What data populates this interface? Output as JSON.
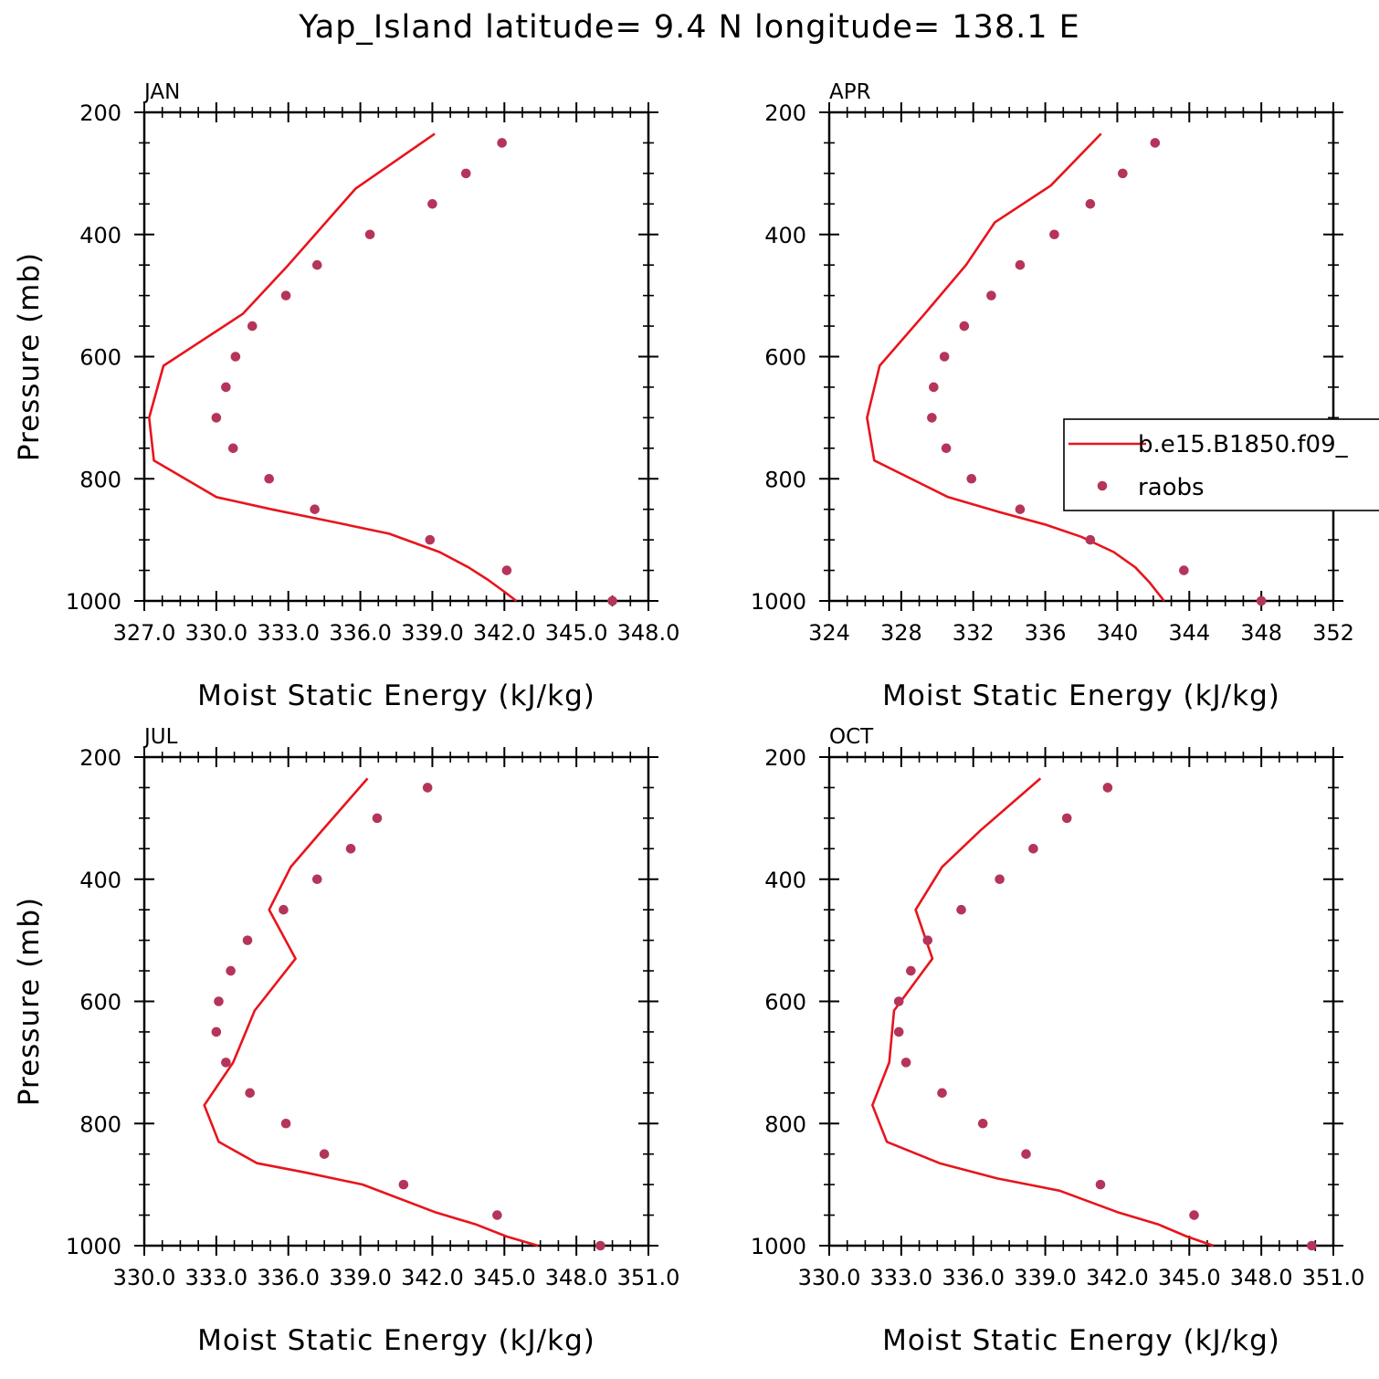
{
  "page": {
    "title": "Yap_Island  latitude= 9.4 N longitude= 138.1 E"
  },
  "legend": {
    "entries": [
      {
        "label": "b.e15.B1850.f09_",
        "type": "line",
        "color": "#e8141c"
      },
      {
        "label": "raobs",
        "type": "marker",
        "color": "#b5345a"
      }
    ]
  },
  "chart_data": [
    {
      "type": "line",
      "panel_label": "JAN",
      "xlabel": "Moist Static Energy (kJ/kg)",
      "ylabel": "Pressure (mb)",
      "xlim": [
        327.0,
        348.0
      ],
      "x_tick_values": [
        327,
        330,
        333,
        336,
        339,
        342,
        345,
        348
      ],
      "x_tick_labels": [
        "327.0",
        "330.0",
        "333.0",
        "336.0",
        "339.0",
        "342.0",
        "345.0",
        "348.0"
      ],
      "ylim": [
        1000,
        200
      ],
      "y_ticks": [
        200,
        400,
        600,
        800,
        1000
      ],
      "series": [
        {
          "name": "b.e15.B1850.f09_",
          "style": "line",
          "color": "#e8141c",
          "x": [
            339.1,
            335.8,
            333.0,
            331.1,
            327.8,
            327.2,
            327.4,
            330.0,
            332.3,
            334.8,
            337.2,
            339.3,
            340.5,
            341.3,
            342.0,
            342.5
          ],
          "y": [
            235,
            325,
            450,
            530,
            615,
            700,
            770,
            830,
            850,
            870,
            890,
            920,
            945,
            965,
            985,
            1000
          ]
        },
        {
          "name": "raobs",
          "style": "marker",
          "color": "#b5345a",
          "x": [
            341.9,
            340.4,
            339.0,
            336.4,
            334.2,
            332.9,
            331.5,
            330.8,
            330.4,
            330.0,
            330.7,
            332.2,
            334.1,
            338.9,
            342.1,
            346.5
          ],
          "y": [
            250,
            300,
            350,
            400,
            450,
            500,
            550,
            600,
            650,
            700,
            750,
            800,
            850,
            900,
            950,
            1000
          ]
        }
      ]
    },
    {
      "type": "line",
      "panel_label": "APR",
      "xlabel": "Moist Static Energy (kJ/kg)",
      "ylabel": "",
      "xlim": [
        324,
        352
      ],
      "x_tick_values": [
        324,
        328,
        332,
        336,
        340,
        344,
        348,
        352
      ],
      "x_tick_labels": [
        "324",
        "328",
        "332",
        "336",
        "340",
        "344",
        "348",
        "352"
      ],
      "ylim": [
        1000,
        200
      ],
      "y_ticks": [
        200,
        400,
        600,
        800,
        1000
      ],
      "series": [
        {
          "name": "b.e15.B1850.f09_",
          "style": "line",
          "color": "#e8141c",
          "x": [
            339.1,
            336.3,
            333.2,
            331.6,
            329.3,
            326.8,
            326.1,
            326.5,
            330.6,
            333.5,
            336.0,
            338.0,
            339.8,
            341.0,
            341.8,
            342.6
          ],
          "y": [
            235,
            320,
            380,
            450,
            530,
            615,
            700,
            770,
            830,
            855,
            875,
            895,
            920,
            945,
            970,
            1000
          ]
        },
        {
          "name": "raobs",
          "style": "marker",
          "color": "#b5345a",
          "x": [
            342.1,
            340.3,
            338.5,
            336.5,
            334.6,
            333.0,
            331.5,
            330.4,
            329.8,
            329.7,
            330.5,
            331.9,
            334.6,
            338.5,
            343.7,
            348.0
          ],
          "y": [
            250,
            300,
            350,
            400,
            450,
            500,
            550,
            600,
            650,
            700,
            750,
            800,
            850,
            900,
            950,
            1000
          ]
        }
      ]
    },
    {
      "type": "line",
      "panel_label": "JUL",
      "xlabel": "Moist Static Energy (kJ/kg)",
      "ylabel": "Pressure (mb)",
      "xlim": [
        330.0,
        351.0
      ],
      "x_tick_values": [
        330,
        333,
        336,
        339,
        342,
        345,
        348,
        351
      ],
      "x_tick_labels": [
        "330.0",
        "333.0",
        "336.0",
        "339.0",
        "342.0",
        "345.0",
        "348.0",
        "351.0"
      ],
      "ylim": [
        1000,
        200
      ],
      "y_ticks": [
        200,
        400,
        600,
        800,
        1000
      ],
      "series": [
        {
          "name": "b.e15.B1850.f09_",
          "style": "line",
          "color": "#e8141c",
          "x": [
            339.3,
            337.3,
            336.1,
            335.2,
            336.3,
            334.6,
            333.7,
            332.5,
            333.1,
            334.7,
            336.7,
            339.1,
            342.1,
            343.8,
            345.1,
            346.4
          ],
          "y": [
            235,
            325,
            380,
            450,
            530,
            615,
            700,
            770,
            830,
            865,
            880,
            900,
            945,
            965,
            985,
            1000
          ]
        },
        {
          "name": "raobs",
          "style": "marker",
          "color": "#b5345a",
          "x": [
            341.8,
            339.7,
            338.6,
            337.2,
            335.8,
            334.3,
            333.6,
            333.1,
            333.0,
            333.4,
            334.4,
            335.9,
            337.5,
            340.8,
            344.7,
            349.0
          ],
          "y": [
            250,
            300,
            350,
            400,
            450,
            500,
            550,
            600,
            650,
            700,
            750,
            800,
            850,
            900,
            950,
            1000
          ]
        }
      ]
    },
    {
      "type": "line",
      "panel_label": "OCT",
      "xlabel": "Moist Static Energy (kJ/kg)",
      "ylabel": "",
      "xlim": [
        330.0,
        351.0
      ],
      "x_tick_values": [
        330,
        333,
        336,
        339,
        342,
        345,
        348,
        351
      ],
      "x_tick_labels": [
        "330.0",
        "333.0",
        "336.0",
        "339.0",
        "342.0",
        "345.0",
        "348.0",
        "351.0"
      ],
      "ylim": [
        1000,
        200
      ],
      "y_ticks": [
        200,
        400,
        600,
        800,
        1000
      ],
      "series": [
        {
          "name": "b.e15.B1850.f09_",
          "style": "line",
          "color": "#e8141c",
          "x": [
            338.8,
            336.3,
            334.7,
            333.6,
            334.3,
            332.7,
            332.5,
            331.8,
            332.4,
            334.6,
            337.0,
            339.6,
            342.0,
            343.7,
            344.9,
            346.0
          ],
          "y": [
            235,
            320,
            380,
            450,
            530,
            615,
            700,
            770,
            830,
            865,
            890,
            910,
            945,
            965,
            985,
            1000
          ]
        },
        {
          "name": "raobs",
          "style": "marker",
          "color": "#b5345a",
          "x": [
            341.6,
            339.9,
            338.5,
            337.1,
            335.5,
            334.1,
            333.4,
            332.9,
            332.9,
            333.2,
            334.7,
            336.4,
            338.2,
            341.3,
            345.2,
            350.1
          ],
          "y": [
            250,
            300,
            350,
            400,
            450,
            500,
            550,
            600,
            650,
            700,
            750,
            800,
            850,
            900,
            950,
            1000
          ]
        }
      ]
    }
  ]
}
